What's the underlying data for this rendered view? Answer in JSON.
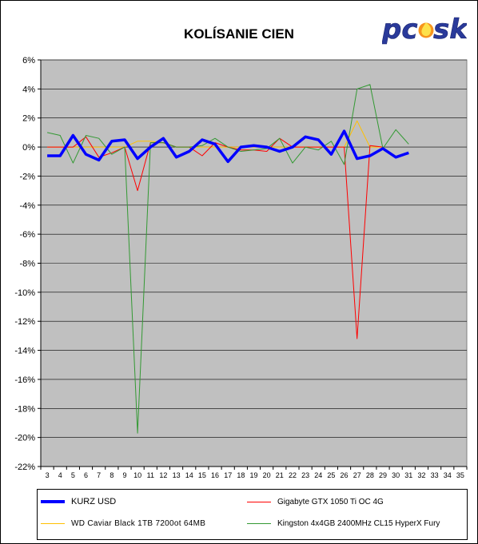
{
  "title": "KOLÍSANIE CIEN",
  "logo_text": "pcosk",
  "chart_data": {
    "type": "line",
    "title": "KOLÍSANIE CIEN",
    "xlabel": "",
    "ylabel": "",
    "ylim": [
      -22,
      6
    ],
    "y_ticks": [
      6,
      4,
      2,
      0,
      -2,
      -4,
      -6,
      -8,
      -10,
      -12,
      -14,
      -16,
      -18,
      -20,
      -22
    ],
    "y_tick_labels": [
      "6%",
      "4%",
      "2%",
      "0%",
      "-2%",
      "-4%",
      "-6%",
      "-8%",
      "-10%",
      "-12%",
      "-14%",
      "-16%",
      "-18%",
      "-20%",
      "-22%"
    ],
    "categories": [
      "3",
      "4",
      "5",
      "6",
      "7",
      "8",
      "9",
      "10",
      "11",
      "12",
      "13",
      "14",
      "15",
      "16",
      "17",
      "18",
      "19",
      "20",
      "21",
      "22",
      "23",
      "24",
      "25",
      "26",
      "27",
      "28",
      "29",
      "30",
      "31",
      "32",
      "33",
      "34",
      "35"
    ],
    "grid": true,
    "legend_position": "bottom",
    "series": [
      {
        "name": "KURZ USD",
        "color": "#0000ff",
        "values": [
          -0.6,
          -0.6,
          0.8,
          -0.5,
          -0.9,
          0.4,
          0.5,
          -0.8,
          0.0,
          0.6,
          -0.7,
          -0.3,
          0.5,
          0.2,
          -1.0,
          0.0,
          0.1,
          0.0,
          -0.3,
          0.0,
          0.7,
          0.5,
          -0.5,
          1.1,
          -0.8,
          -0.6,
          -0.1,
          -0.7,
          -0.4,
          null,
          null,
          null,
          null
        ]
      },
      {
        "name": "Gigabyte GTX 1050 Ti OC 4G",
        "color": "#ff0000",
        "values": [
          0.0,
          0.0,
          0.0,
          0.7,
          -0.7,
          -0.4,
          0.0,
          -3.0,
          0.3,
          0.3,
          0.0,
          0.0,
          -0.6,
          0.3,
          0.0,
          -0.2,
          -0.2,
          -0.3,
          0.6,
          0.0,
          0.0,
          0.0,
          0.0,
          0.0,
          -13.2,
          0.1,
          0.0,
          null,
          null,
          null,
          null,
          null,
          null
        ]
      },
      {
        "name": "WD Caviar Black 1TB 7200ot 64MB",
        "color": "#ffc000",
        "values": [
          0.0,
          0.0,
          0.0,
          0.0,
          0.0,
          0.0,
          0.0,
          0.4,
          0.4,
          0.3,
          0.0,
          0.0,
          0.0,
          0.0,
          0.0,
          0.0,
          0.0,
          0.0,
          0.0,
          0.0,
          0.0,
          0.0,
          0.0,
          0.0,
          1.8,
          0.0,
          0.0,
          null,
          null,
          null,
          null,
          null,
          null
        ]
      },
      {
        "name": "Kingston 4x4GB 2400MHz CL15 HyperX Fury",
        "color": "#339933",
        "values": [
          1.0,
          0.8,
          -1.1,
          0.8,
          0.6,
          -0.5,
          0.0,
          -19.7,
          0.3,
          0.3,
          0.0,
          0.0,
          0.1,
          0.6,
          0.0,
          -0.3,
          -0.2,
          -0.1,
          0.6,
          -1.1,
          0.0,
          -0.2,
          0.4,
          -1.2,
          4.0,
          4.3,
          -0.1,
          1.2,
          0.2,
          null,
          null,
          null,
          null
        ]
      }
    ]
  }
}
